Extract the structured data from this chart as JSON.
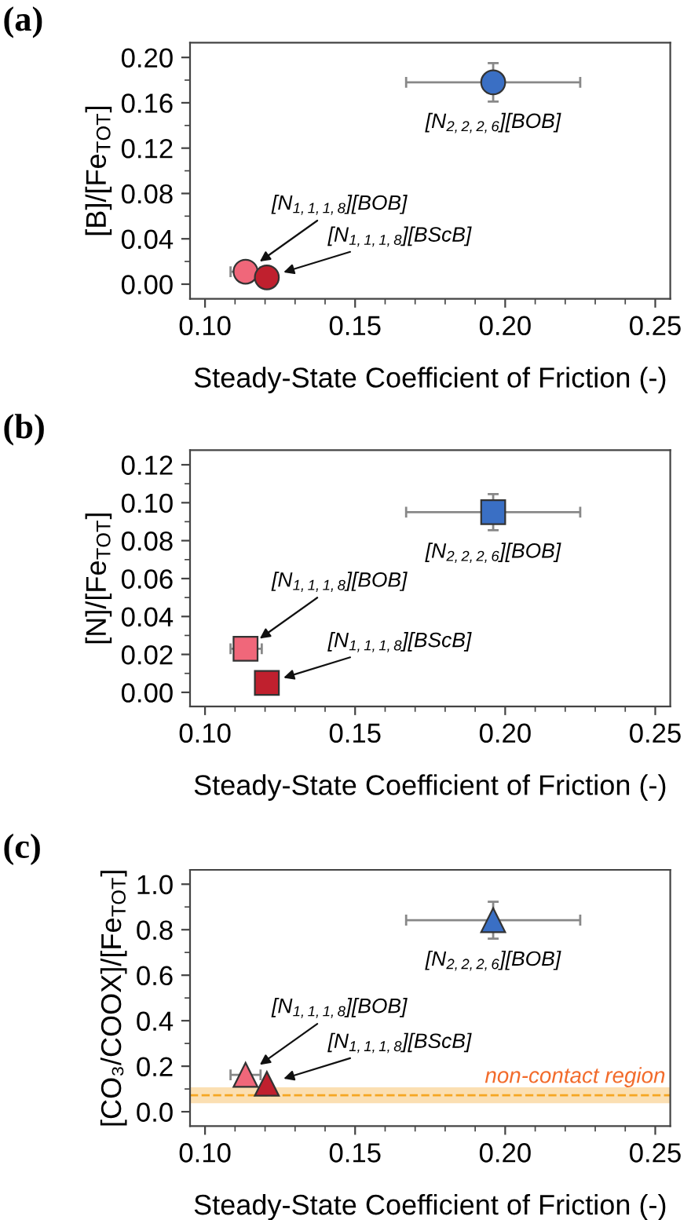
{
  "chart_data": [
    {
      "type": "scatter",
      "title": "(a)",
      "xlabel": "Steady-State Coefficient of Friction (-)",
      "ylabel": "[B]/[Fe$_{TOT}$]",
      "marker": "circle",
      "grid": false,
      "legend": false,
      "xlim": [
        0.095,
        0.255
      ],
      "xticks": [
        {
          "value": 0.1,
          "label": "0.10"
        },
        {
          "value": 0.15,
          "label": "0.15"
        },
        {
          "value": 0.2,
          "label": "0.20"
        },
        {
          "value": 0.25,
          "label": "0.25"
        }
      ],
      "ylim": [
        -0.013,
        0.213
      ],
      "yticks": [
        {
          "value": 0,
          "label": "0.00"
        },
        {
          "value": 0.04,
          "label": "0.04"
        },
        {
          "value": 0.08,
          "label": "0.08"
        },
        {
          "value": 0.12,
          "label": "0.12"
        },
        {
          "value": 0.16,
          "label": "0.16"
        },
        {
          "value": 0.2,
          "label": "0.20"
        }
      ],
      "series": [
        {
          "name": "[N$_{2,2,2,6}$][BOB]",
          "color": "#3a6fc4",
          "x": [
            0.196
          ],
          "values": [
            0.178
          ],
          "errors": [
            0.017
          ],
          "xerrors": [
            [
              0.167,
              0.225
            ]
          ]
        },
        {
          "name": "[N$_{1,1,1,8}$][BOB]",
          "color": "#f0677a",
          "x": [
            0.1135
          ],
          "values": [
            0.011
          ],
          "errors": [
            null
          ],
          "xerrors": [
            [
              0.1085,
              0.1185
            ]
          ]
        },
        {
          "name": "[N$_{1,1,1,8}$][BScB]",
          "color": "#c0202e",
          "x": [
            0.1206
          ],
          "values": [
            0.006
          ],
          "errors": [
            null
          ],
          "xerrors": [
            null
          ]
        }
      ]
    },
    {
      "type": "scatter",
      "title": "(b)",
      "xlabel": "Steady-State Coefficient of Friction (-)",
      "ylabel": "[N]/[Fe$_{TOT}$]",
      "marker": "square",
      "grid": false,
      "legend": false,
      "xlim": [
        0.095,
        0.255
      ],
      "xticks": [
        {
          "value": 0.1,
          "label": "0.10"
        },
        {
          "value": 0.15,
          "label": "0.15"
        },
        {
          "value": 0.2,
          "label": "0.20"
        },
        {
          "value": 0.25,
          "label": "0.25"
        }
      ],
      "ylim": [
        -0.0074,
        0.1277
      ],
      "yticks": [
        {
          "value": 0,
          "label": "0.00"
        },
        {
          "value": 0.02,
          "label": "0.02"
        },
        {
          "value": 0.04,
          "label": "0.04"
        },
        {
          "value": 0.06,
          "label": "0.06"
        },
        {
          "value": 0.08,
          "label": "0.08"
        },
        {
          "value": 0.1,
          "label": "0.10"
        },
        {
          "value": 0.12,
          "label": "0.12"
        }
      ],
      "series": [
        {
          "name": "[N$_{2,2,2,6}$][BOB]",
          "color": "#3a6fc4",
          "x": [
            0.196
          ],
          "values": [
            0.095
          ],
          "errors": [
            0.0095
          ],
          "xerrors": [
            [
              0.167,
              0.225
            ]
          ]
        },
        {
          "name": "[N$_{1,1,1,8}$][BOB]",
          "color": "#f0677a",
          "x": [
            0.1135
          ],
          "values": [
            0.023
          ],
          "errors": [
            null
          ],
          "xerrors": [
            [
              0.1085,
              0.1189
            ]
          ]
        },
        {
          "name": "[N$_{1,1,1,8}$][BScB]",
          "color": "#c0202e",
          "x": [
            0.1206
          ],
          "values": [
            0.005
          ],
          "errors": [
            null
          ],
          "xerrors": [
            null
          ]
        }
      ]
    },
    {
      "type": "scatter",
      "title": "(c)",
      "xlabel": "Steady-State Coefficient of Friction (-)",
      "ylabel": "[CO₃/COOX]/[Fe$_{TOT}$]",
      "marker": "triangle",
      "grid": false,
      "legend": false,
      "xlim": [
        0.095,
        0.255
      ],
      "xticks": [
        {
          "value": 0.1,
          "label": "0.10"
        },
        {
          "value": 0.15,
          "label": "0.15"
        },
        {
          "value": 0.2,
          "label": "0.20"
        },
        {
          "value": 0.25,
          "label": "0.25"
        }
      ],
      "ylim": [
        -0.063,
        1.063
      ],
      "yticks": [
        {
          "value": 0,
          "label": "0.0"
        },
        {
          "value": 0.2,
          "label": "0.2"
        },
        {
          "value": 0.4,
          "label": "0.4"
        },
        {
          "value": 0.6,
          "label": "0.6"
        },
        {
          "value": 0.8,
          "label": "0.8"
        },
        {
          "value": 1.0,
          "label": "1.0"
        }
      ],
      "bands": [
        {
          "axis": "y",
          "from": 0.037,
          "to": 0.107,
          "label": "non-contact region",
          "color": "#fbdcaa"
        }
      ],
      "ref_lines": [
        {
          "axis": "y",
          "value": 0.072,
          "color": "#f5a623",
          "line_style": "dashed"
        }
      ],
      "series": [
        {
          "name": "[N$_{2,2,2,6}$][BOB]",
          "color": "#3a6fc4",
          "x": [
            0.196
          ],
          "values": [
            0.842
          ],
          "errors": [
            0.081
          ],
          "xerrors": [
            [
              0.167,
              0.225
            ]
          ]
        },
        {
          "name": "[N$_{1,1,1,8}$][BOB]",
          "color": "#f0677a",
          "x": [
            0.1135
          ],
          "values": [
            0.162
          ],
          "errors": [
            null
          ],
          "xerrors": [
            [
              0.1085,
              0.1185
            ]
          ]
        },
        {
          "name": "[N$_{1,1,1,8}$][BScB]",
          "color": "#c0202e",
          "x": [
            0.1206
          ],
          "values": [
            0.123
          ],
          "errors": [
            null
          ],
          "xerrors": [
            null
          ]
        }
      ]
    }
  ]
}
